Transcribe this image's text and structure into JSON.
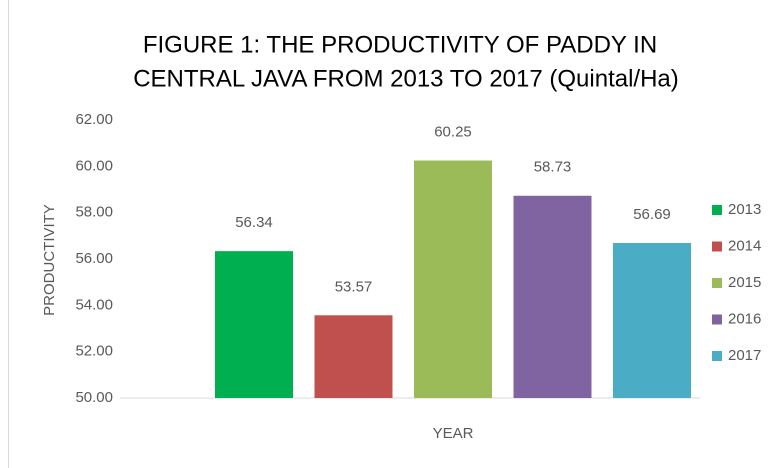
{
  "chart_data": {
    "type": "bar",
    "title": [
      "FIGURE 1: THE PRODUCTIVITY OF PADDY IN",
      "CENTRAL JAVA FROM 2013 TO 2017 (Quintal/Ha)"
    ],
    "x_label": "YEAR",
    "y_label": "PRODUCTIVITY",
    "categories": [
      null
    ],
    "series": [
      {
        "name": "2013",
        "color": "#00b050",
        "values": [
          56.34
        ]
      },
      {
        "name": "2014",
        "color": "#c0504d",
        "values": [
          53.57
        ]
      },
      {
        "name": "2015",
        "color": "#9bbb59",
        "values": [
          60.25
        ]
      },
      {
        "name": "2016",
        "color": "#8064a2",
        "values": [
          58.73
        ]
      },
      {
        "name": "2017",
        "color": "#4bacc6",
        "values": [
          56.69
        ]
      }
    ],
    "ylim": [
      50,
      62
    ],
    "yticks": [
      {
        "value": 50,
        "label": "50.00"
      },
      {
        "value": 52,
        "label": "52.00"
      },
      {
        "value": 54,
        "label": "54.00"
      },
      {
        "value": 56,
        "label": "56.00"
      },
      {
        "value": 58,
        "label": "58.00"
      },
      {
        "value": 60,
        "label": "60.00"
      },
      {
        "value": 62,
        "label": "62.00"
      }
    ],
    "grid": false,
    "legend": "right",
    "data_labels": true
  }
}
